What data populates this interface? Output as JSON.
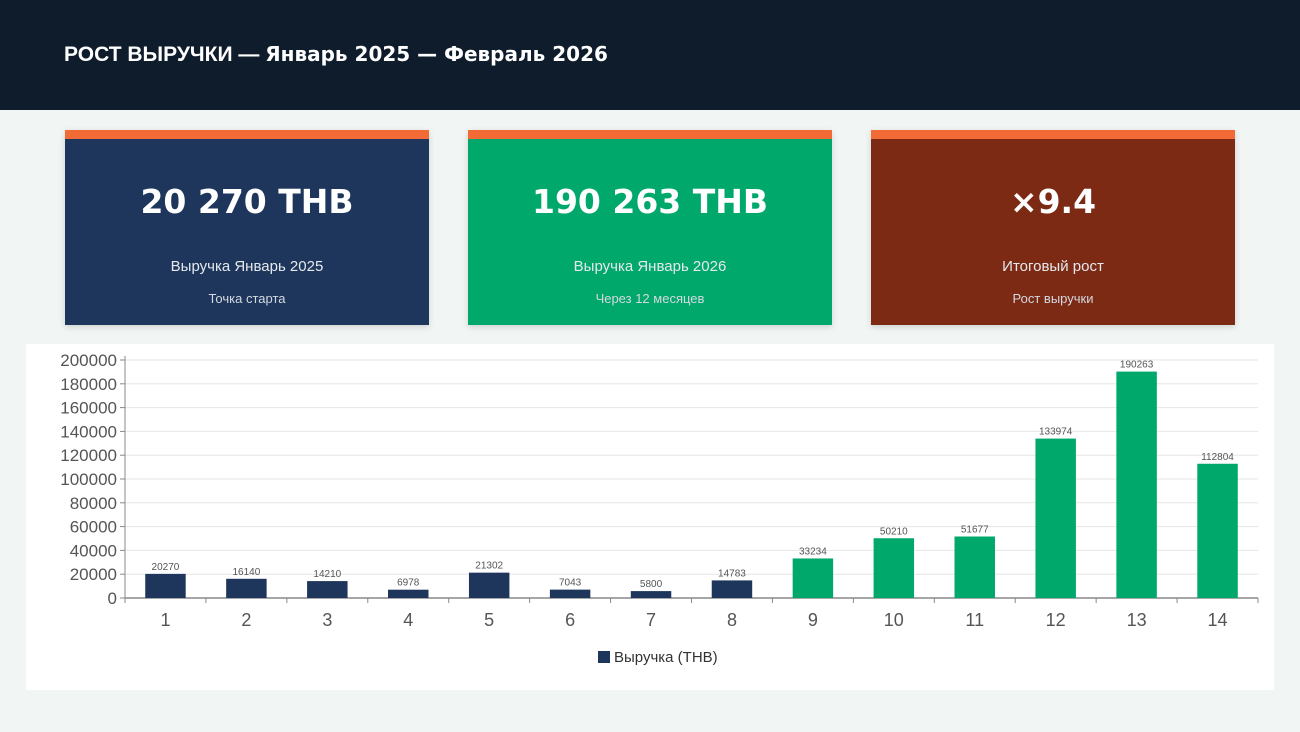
{
  "header": {
    "title_main": "РОСТ ВЫРУЧКИ —",
    "title_range": "Январь 2025 — Февраль 2026"
  },
  "cards": [
    {
      "value": "20 270 THB",
      "label": "Выручка Январь 2025",
      "note": "Точка старта",
      "color": "#1e365c"
    },
    {
      "value": "190 263 THB",
      "label": "Выручка Январь 2026",
      "note": "Через 12 месяцев",
      "color": "#00a86b"
    },
    {
      "value": "×9.4",
      "label": "Итоговый рост",
      "note": "Рост выручки",
      "color": "#7c2a14"
    }
  ],
  "accent_color": "#f26a35",
  "chart_data": {
    "type": "bar",
    "title": "",
    "xlabel": "",
    "ylabel": "",
    "categories": [
      "1",
      "2",
      "3",
      "4",
      "5",
      "6",
      "7",
      "8",
      "9",
      "10",
      "11",
      "12",
      "13",
      "14"
    ],
    "series": [
      {
        "name": "Выручка (THB)",
        "values": [
          20270,
          16140,
          14210,
          6978,
          21302,
          7043,
          5800,
          14783,
          33234,
          50210,
          51677,
          133974,
          190263,
          112804
        ],
        "data_labels": [
          "20270",
          "16140",
          "14210",
          "6978",
          "21302",
          "7043",
          "5800",
          "14783",
          "33234",
          "50210",
          "51677",
          "133974",
          "190263",
          "112804"
        ]
      }
    ],
    "bar_colors": [
      "#1e365c",
      "#1e365c",
      "#1e365c",
      "#1e365c",
      "#1e365c",
      "#1e365c",
      "#1e365c",
      "#1e365c",
      "#00a86b",
      "#00a86b",
      "#00a86b",
      "#00a86b",
      "#00a86b",
      "#00a86b"
    ],
    "ylim": [
      0,
      200000
    ],
    "yticks": [
      "0",
      "20000",
      "40000",
      "60000",
      "80000",
      "100000",
      "120000",
      "140000",
      "160000",
      "180000",
      "200000"
    ],
    "grid": true,
    "legend": "bottom-center"
  }
}
